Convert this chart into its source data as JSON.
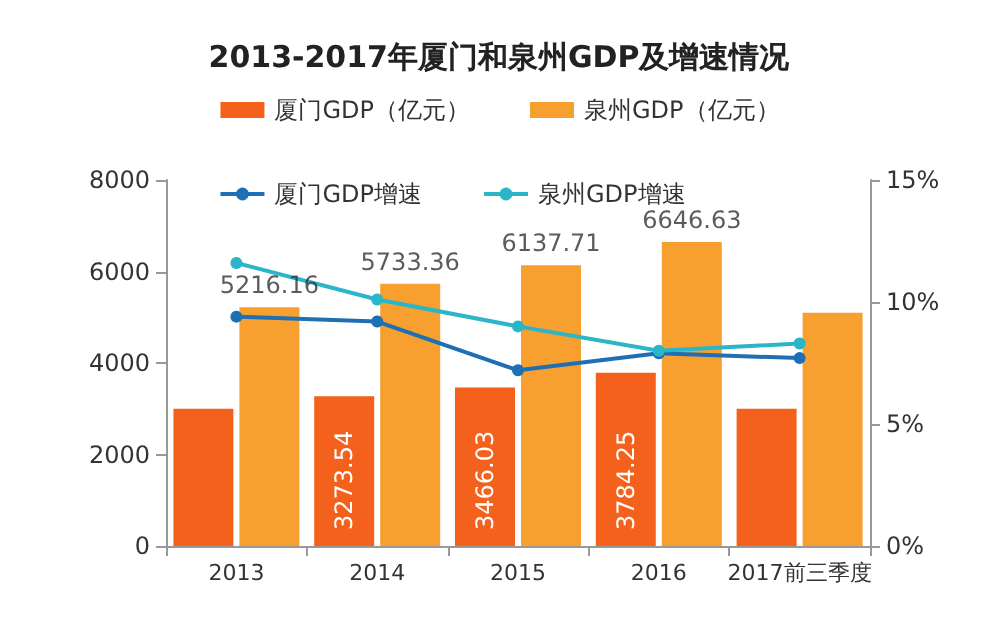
{
  "chart_data": {
    "type": "bar",
    "title": "2013-2017年厦门和泉州GDP及增速情况",
    "categories": [
      "2013",
      "2014",
      "2015",
      "2016",
      "2017前三季度"
    ],
    "series": [
      {
        "name": "厦门GDP（亿元）",
        "color": "#f4611c",
        "values": [
          3000,
          3273.54,
          3466.03,
          3784.25,
          3000
        ],
        "value_labels": [
          null,
          "3273.54",
          "3466.03",
          "3784.25",
          null
        ]
      },
      {
        "name": "泉州GDP（亿元）",
        "color": "#f7a030",
        "values": [
          5216.16,
          5733.36,
          6137.71,
          6646.63,
          5100
        ],
        "value_labels": [
          "5216.16",
          "5733.36",
          "6137.71",
          "6646.63",
          null
        ]
      },
      {
        "name": "厦门GDP增速",
        "type": "line",
        "axis": "y2",
        "color": "#1f6fb4",
        "values": [
          9.4,
          9.2,
          7.2,
          7.9,
          7.7
        ]
      },
      {
        "name": "泉州GDP增速",
        "type": "line",
        "axis": "y2",
        "color": "#2ab5c8",
        "values": [
          11.6,
          10.1,
          9,
          8,
          8.3
        ]
      }
    ],
    "ylim": [
      0,
      8000
    ],
    "yticks": [
      0,
      2000,
      4000,
      6000,
      8000
    ],
    "y2lim": [
      0,
      15
    ],
    "y2ticks": [
      {
        "value": 0,
        "label": "0%"
      },
      {
        "value": 5,
        "label": "5%"
      },
      {
        "value": 10,
        "label": "10%"
      },
      {
        "value": 15,
        "label": "15%"
      }
    ],
    "legend": "top",
    "grid": false,
    "marker": "circle"
  }
}
